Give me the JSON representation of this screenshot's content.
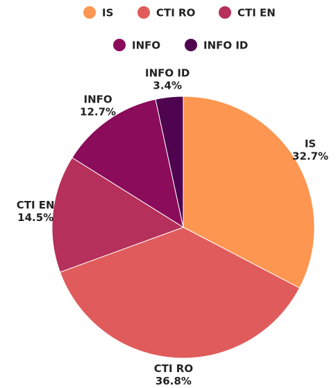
{
  "chart_data": {
    "type": "pie",
    "categories": [
      "IS",
      "CTI RO",
      "CTI EN",
      "INFO",
      "INFO ID"
    ],
    "values": [
      32.7,
      36.8,
      14.5,
      12.7,
      3.4
    ],
    "value_labels": [
      "32.7%",
      "36.8%",
      "14.5%",
      "12.7%",
      "3.4%"
    ],
    "colors": [
      "#fd9651",
      "#e05c5c",
      "#b5305a",
      "#8a0c5a",
      "#4f0450"
    ],
    "legend": "top"
  }
}
